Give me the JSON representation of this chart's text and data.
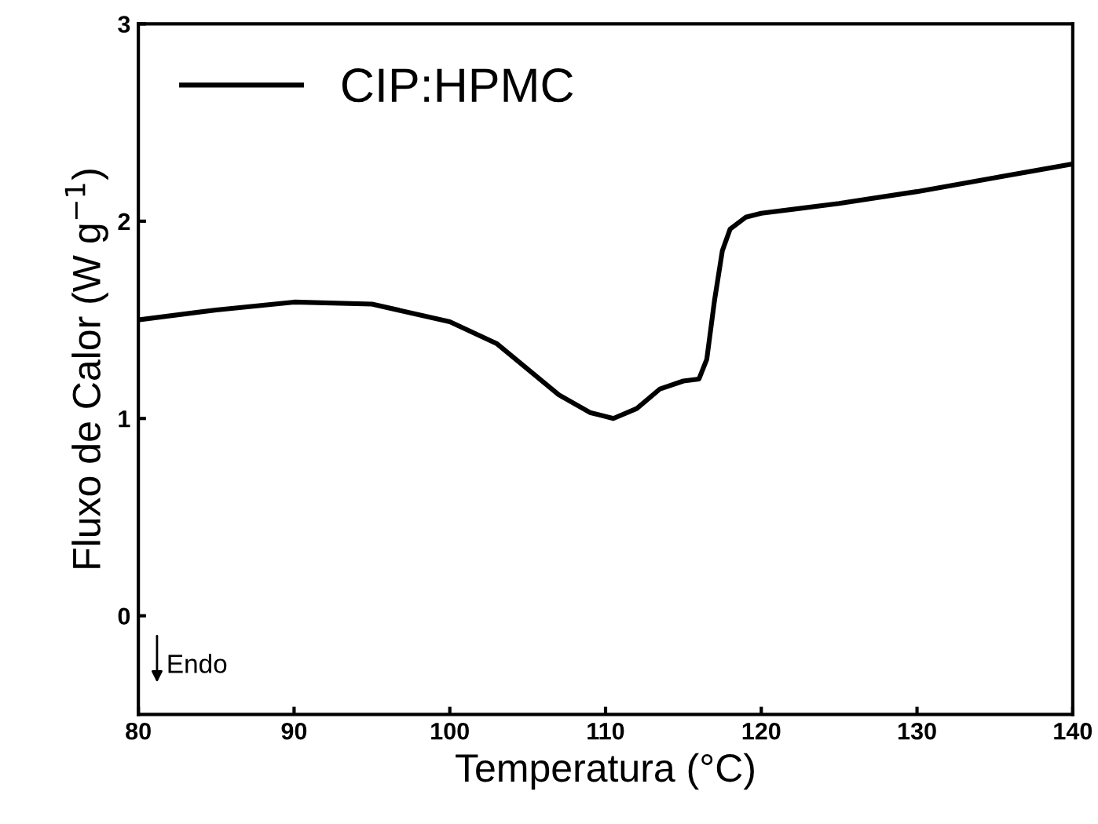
{
  "chart_data": {
    "type": "line",
    "xlabel": "Temperatura (°C)",
    "ylabel": "Fluxo de Calor (W g$^{−1}$)",
    "xlim": [
      80,
      140
    ],
    "ylim": [
      -0.5,
      3
    ],
    "xticks": [
      80,
      90,
      100,
      110,
      120,
      130,
      140
    ],
    "yticks": [
      0,
      1,
      2,
      3
    ],
    "legend": "top left",
    "grid": false,
    "annotations": [
      "Endo"
    ],
    "series": [
      {
        "name": "CIP:HPMC",
        "color": "#000000",
        "x": [
          80,
          85,
          90,
          95,
          100,
          103,
          105,
          107,
          109,
          110.5,
          112,
          113.5,
          115,
          116,
          116.5,
          117,
          117.5,
          118,
          119,
          120,
          125,
          130,
          135,
          140
        ],
        "values": [
          1.5,
          1.55,
          1.59,
          1.58,
          1.49,
          1.38,
          1.25,
          1.12,
          1.03,
          1.0,
          1.05,
          1.15,
          1.19,
          1.2,
          1.3,
          1.6,
          1.85,
          1.96,
          2.02,
          2.04,
          2.09,
          2.15,
          2.22,
          2.29
        ]
      }
    ]
  }
}
